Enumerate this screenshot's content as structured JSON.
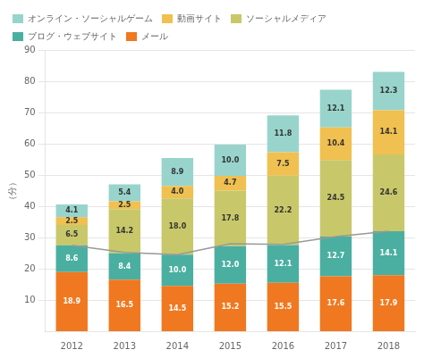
{
  "chart_data": {
    "type": "bar",
    "stacked": true,
    "ylabel": "（分）",
    "categories": [
      "2012",
      "2013",
      "2014",
      "2015",
      "2016",
      "2017",
      "2018"
    ],
    "series": [
      {
        "name": "メール",
        "color": "#f07820",
        "data_labels": true,
        "values": [
          18.9,
          16.5,
          14.5,
          15.2,
          15.5,
          17.6,
          17.9
        ],
        "value_labels": [
          "18.9",
          "16.5",
          "14.5",
          "15.2",
          "15.5",
          "17.6",
          "17.9"
        ]
      },
      {
        "name": "ブログ・ウェブサイト",
        "color": "#4aafa0",
        "data_labels": true,
        "values": [
          8.6,
          8.4,
          10.0,
          12.0,
          12.1,
          12.7,
          14.1
        ],
        "value_labels": [
          "8.6",
          "8.4",
          "10.0",
          "12.0",
          "12.1",
          "12.7",
          "14.1"
        ]
      },
      {
        "name": "ソーシャルメディア",
        "color": "#c8c86a",
        "data_labels": true,
        "values": [
          6.5,
          14.2,
          18.0,
          17.8,
          22.2,
          24.5,
          24.6
        ],
        "value_labels": [
          "6.5",
          "14.2",
          "18.0",
          "17.8",
          "22.2",
          "24.5",
          "24.6"
        ]
      },
      {
        "name": "動画サイト",
        "color": "#f0c050",
        "data_labels": true,
        "values": [
          2.5,
          2.5,
          4.0,
          4.7,
          7.5,
          10.4,
          14.1
        ],
        "value_labels": [
          "2.5",
          "2.5",
          "4.0",
          "4.7",
          "7.5",
          "10.4",
          "14.1"
        ]
      },
      {
        "name": "オンライン・ソーシャルゲーム",
        "color": "#98d4cc",
        "data_labels": true,
        "values": [
          4.1,
          5.4,
          8.9,
          10.0,
          11.8,
          12.1,
          12.3
        ],
        "value_labels": [
          "4.1",
          "5.4",
          "8.9",
          "10.0",
          "11.8",
          "12.1",
          "12.3"
        ]
      },
      {
        "type": "line",
        "color": "#999999",
        "values": [
          27.5,
          25.2,
          24.5,
          28.0,
          27.8,
          30.3,
          32.0
        ]
      }
    ],
    "ylim": [
      0,
      90
    ],
    "yticks": [
      10,
      20,
      30,
      40,
      50,
      60,
      70,
      80,
      90
    ],
    "grid": true,
    "legend": "upper left"
  }
}
